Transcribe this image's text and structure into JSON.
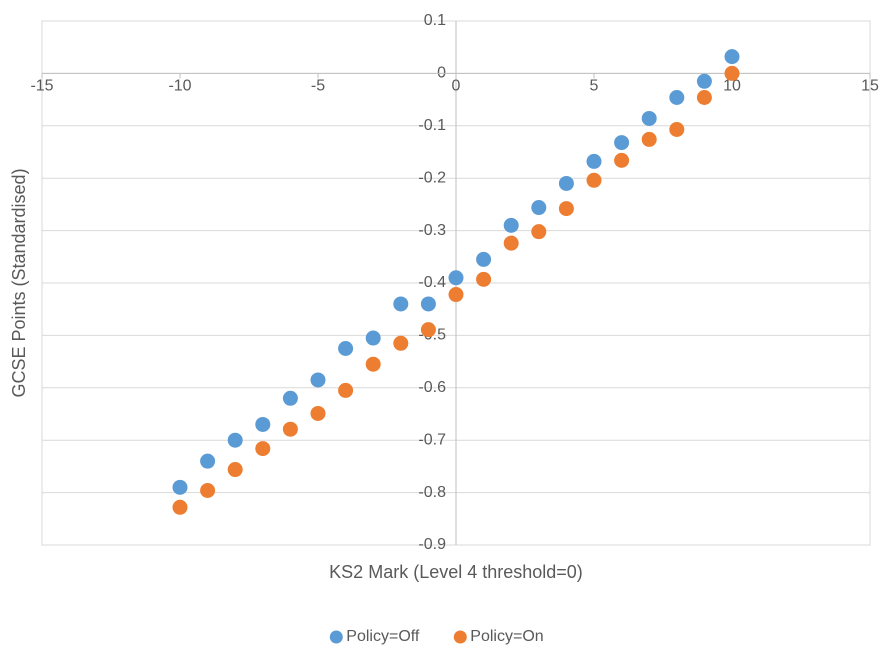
{
  "chart_data": {
    "type": "scatter",
    "x_label": "KS2 Mark (Level 4 threshold=0)",
    "y_label": "GCSE Points (Standardised)",
    "xlim": [
      -15,
      15
    ],
    "xticks": [
      -15,
      -10,
      -5,
      0,
      5,
      10,
      15
    ],
    "ylim": [
      -0.9,
      0.1
    ],
    "yticks": [
      0.1,
      0,
      -0.1,
      -0.2,
      -0.3,
      -0.4,
      -0.5,
      -0.6,
      -0.7,
      -0.8,
      -0.9
    ],
    "grid": true,
    "legend": "bottom",
    "series": [
      {
        "name": "Policy=Off",
        "color": "#5b9bd5",
        "x": [
          -10,
          -9,
          -8,
          -7,
          -6,
          -5,
          -4,
          -3,
          -2,
          -1,
          0,
          1,
          2,
          3,
          4,
          5,
          6,
          7,
          8,
          9,
          10
        ],
        "values": [
          -0.79,
          -0.74,
          -0.7,
          -0.67,
          -0.62,
          -0.585,
          -0.525,
          -0.505,
          -0.44,
          -0.44,
          -0.39,
          -0.355,
          -0.29,
          -0.256,
          -0.21,
          -0.168,
          -0.132,
          -0.086,
          -0.046,
          -0.015,
          0.032
        ]
      },
      {
        "name": "Policy=On",
        "color": "#ed7d31",
        "x": [
          -10,
          -9,
          -8,
          -7,
          -6,
          -5,
          -4,
          -3,
          -2,
          -1,
          0,
          1,
          2,
          3,
          4,
          5,
          6,
          7,
          8,
          9,
          10
        ],
        "values": [
          -0.828,
          -0.796,
          -0.756,
          -0.716,
          -0.679,
          -0.649,
          -0.605,
          -0.555,
          -0.515,
          -0.489,
          -0.422,
          -0.393,
          -0.324,
          -0.302,
          -0.258,
          -0.204,
          -0.166,
          -0.126,
          -0.107,
          -0.046,
          0.0
        ]
      }
    ]
  }
}
